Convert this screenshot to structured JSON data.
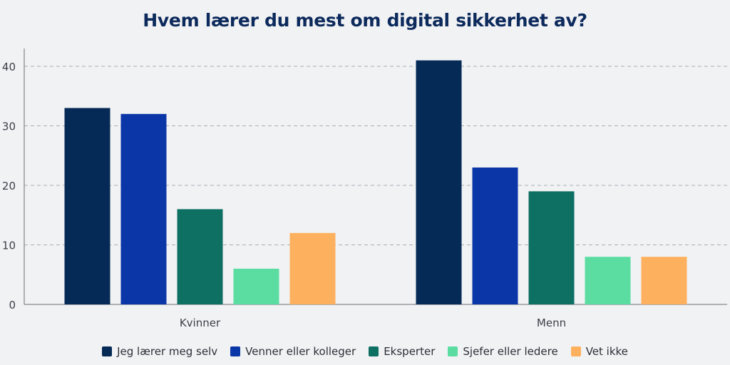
{
  "chart_data": {
    "type": "bar",
    "title": "Hvem lærer du mest om digital sikkerhet av?",
    "xlabel": "",
    "ylabel": "",
    "categories": [
      "Kvinner",
      "Menn"
    ],
    "ylim": [
      0,
      43
    ],
    "yticks": [
      0,
      10,
      20,
      30,
      40
    ],
    "grid": true,
    "legend_position": "bottom",
    "series": [
      {
        "name": "Jeg lærer meg selv",
        "color": "#052a56",
        "values": [
          33,
          41
        ]
      },
      {
        "name": "Venner eller kolleger",
        "color": "#0a36a8",
        "values": [
          32,
          23
        ]
      },
      {
        "name": "Eksperter",
        "color": "#0e6f63",
        "values": [
          16,
          19
        ]
      },
      {
        "name": "Sjefer eller ledere",
        "color": "#5bdda2",
        "values": [
          6,
          8
        ]
      },
      {
        "name": "Vet ikke",
        "color": "#fdb15e",
        "values": [
          12,
          8
        ]
      }
    ]
  }
}
